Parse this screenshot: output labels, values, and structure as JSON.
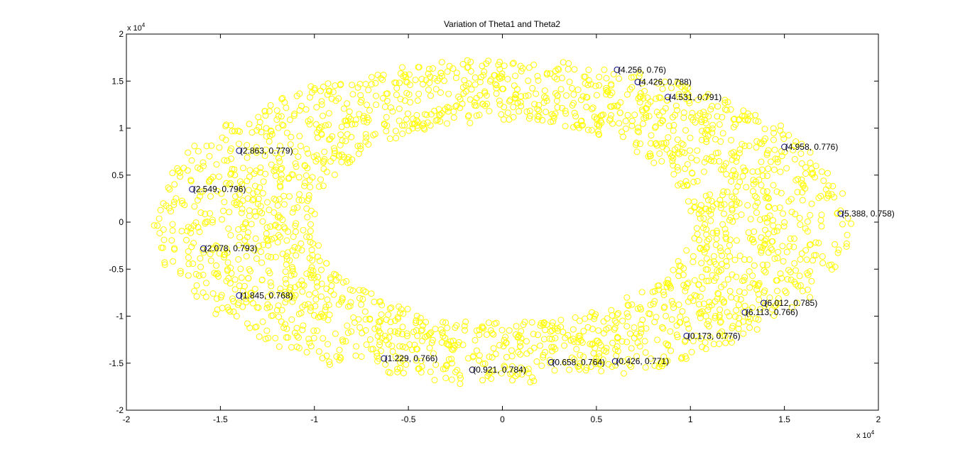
{
  "chart_data": {
    "type": "scatter",
    "title": "Variation of Theta1 and Theta2",
    "xlabel": "",
    "ylabel": "",
    "xlim": [
      -2,
      2
    ],
    "ylim": [
      -2,
      2
    ],
    "x_ticks": [
      "-2",
      "-1.5",
      "-1",
      "-0.5",
      "0",
      "0.5",
      "1",
      "1.5",
      "2"
    ],
    "y_ticks": [
      "2",
      "1.5",
      "1",
      "0.5",
      "0",
      "-0.5",
      "-1",
      "-1.5",
      "-2"
    ],
    "x_exponent": "x 10",
    "x_exponent_power": "4",
    "y_exponent": "x 10",
    "y_exponent_power": "4",
    "grid": false,
    "point_color": "#ffff00",
    "annotation_color": "#000080",
    "ring": {
      "center": [
        0.0,
        0.0
      ],
      "outer_radii": [
        1.85,
        1.72
      ],
      "inner_radii": [
        1.01,
        1.08
      ],
      "point_count": 2200
    },
    "annotated_points": [
      {
        "x": 0.61,
        "y": 1.62,
        "label": "(4.256, 0.76)"
      },
      {
        "x": 0.72,
        "y": 1.49,
        "label": "(4.426, 0.788)"
      },
      {
        "x": 0.88,
        "y": 1.33,
        "label": "(4.531, 0.791)"
      },
      {
        "x": -1.4,
        "y": 0.76,
        "label": "(2.863, 0.779)"
      },
      {
        "x": 1.5,
        "y": 0.8,
        "label": "(4.958, 0.776)"
      },
      {
        "x": -1.65,
        "y": 0.35,
        "label": "(2.549, 0.796)"
      },
      {
        "x": 1.8,
        "y": 0.09,
        "label": "(5.388, 0.758)"
      },
      {
        "x": -1.59,
        "y": -0.28,
        "label": "(2.078, 0.793)"
      },
      {
        "x": -1.4,
        "y": -0.78,
        "label": "(1.845, 0.768)"
      },
      {
        "x": 1.39,
        "y": -0.86,
        "label": "(6.012, 0.785)"
      },
      {
        "x": 1.29,
        "y": -0.96,
        "label": "(6.113, 0.766)"
      },
      {
        "x": 0.98,
        "y": -1.21,
        "label": "(0.173, 0.776)"
      },
      {
        "x": -0.63,
        "y": -1.45,
        "label": "(1.229, 0.766)"
      },
      {
        "x": -0.16,
        "y": -1.57,
        "label": "(0.921, 0.784)"
      },
      {
        "x": 0.26,
        "y": -1.49,
        "label": "(0.658, 0.764)"
      },
      {
        "x": 0.6,
        "y": -1.48,
        "label": "(0.426, 0.771)"
      }
    ]
  }
}
